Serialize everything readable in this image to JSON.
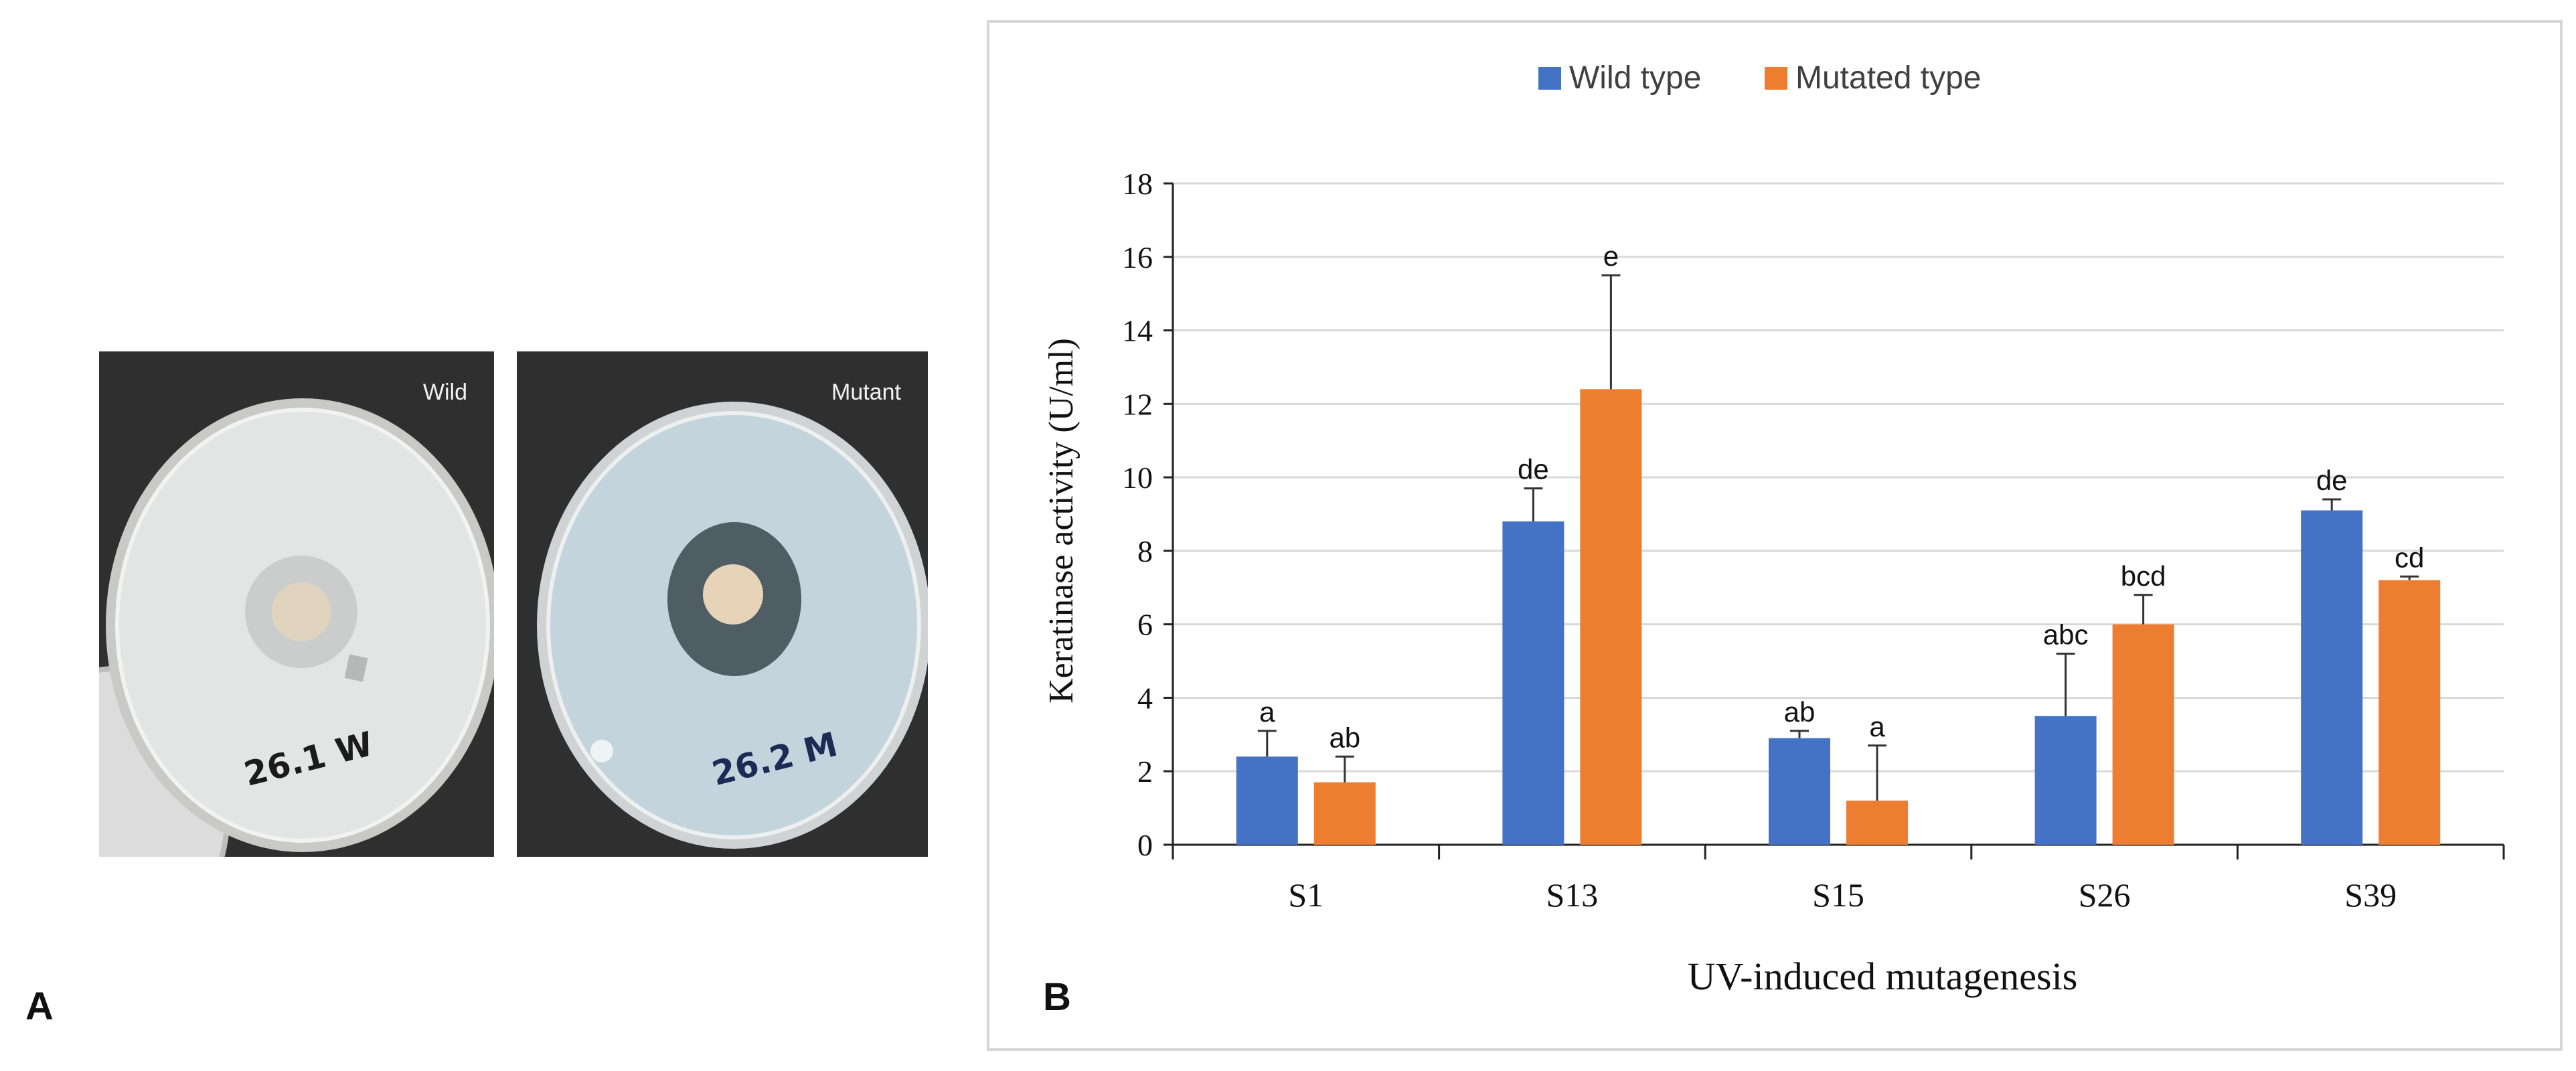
{
  "panels": {
    "a_letter": "A",
    "b_letter": "B",
    "wild_label": "Wild",
    "mutant_label": "Mutant",
    "wild_plate_note": "26.1 W",
    "mutant_plate_note": "26.2 M"
  },
  "chart_data": {
    "type": "bar",
    "title": "",
    "xlabel": "UV-induced mutagenesis",
    "ylabel": "Keratinase activity (U/ml)",
    "ylim": [
      0,
      18
    ],
    "yticks": [
      "0",
      "2",
      "4",
      "6",
      "8",
      "10",
      "12",
      "14",
      "16",
      "18"
    ],
    "grid": true,
    "legend_position": "top-center",
    "categories": [
      "S1",
      "S13",
      "S15",
      "S26",
      "S39"
    ],
    "series": [
      {
        "name": "Wild type",
        "color": "#4472C4",
        "values": [
          2.4,
          8.8,
          2.9,
          3.5,
          9.1
        ],
        "errors": [
          0.7,
          0.9,
          0.2,
          1.7,
          0.3
        ],
        "letters": [
          "a",
          "de",
          "ab",
          "abc",
          "de"
        ]
      },
      {
        "name": "Mutated type",
        "color": "#ED7D31",
        "values": [
          1.7,
          12.4,
          1.2,
          6.0,
          7.2
        ],
        "errors": [
          0.7,
          3.1,
          1.5,
          0.8,
          0.1
        ],
        "letters": [
          "ab",
          "e",
          "a",
          "bcd",
          "cd"
        ]
      }
    ]
  }
}
